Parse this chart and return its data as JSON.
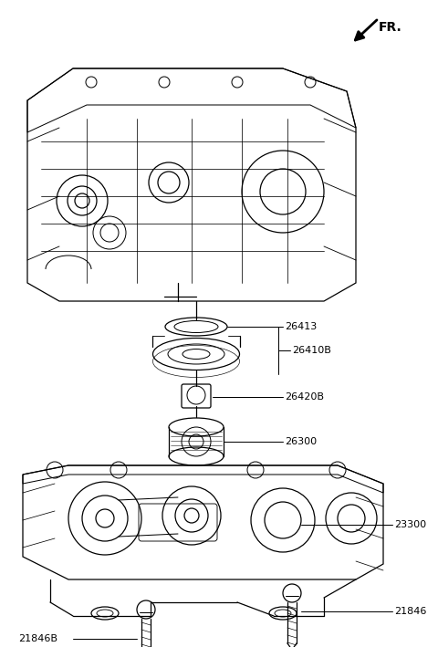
{
  "bg_color": "#ffffff",
  "line_color": "#000000",
  "fr_label": "FR.",
  "part_labels": [
    "26413",
    "26410B",
    "26420B",
    "26300",
    "23300",
    "21846",
    "21846B"
  ]
}
